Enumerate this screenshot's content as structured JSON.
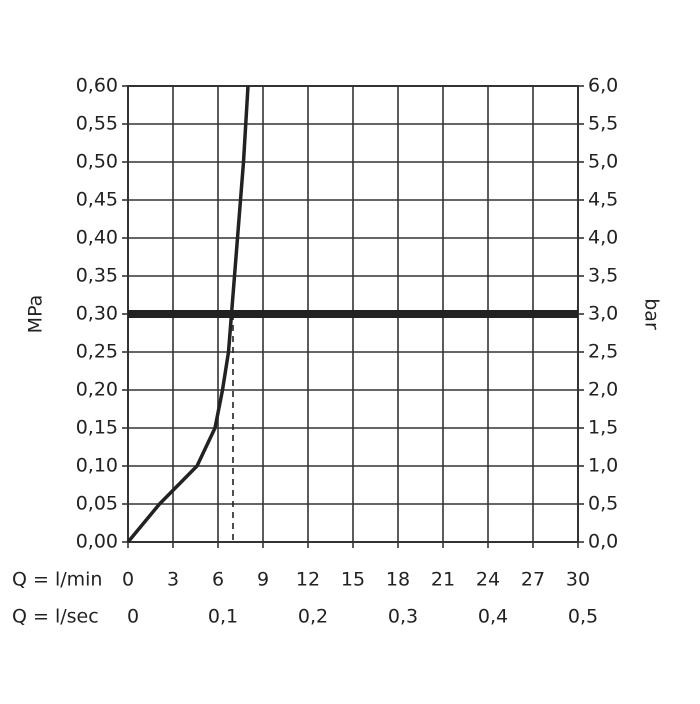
{
  "chart_data": {
    "type": "line",
    "xlabel": "Q = l/min",
    "x2label": "Q = l/sec",
    "ylabel": "MPa",
    "y2label": "bar",
    "xlim": [
      0,
      30
    ],
    "xticks": [
      0,
      3,
      6,
      9,
      12,
      15,
      18,
      21,
      24,
      27,
      30
    ],
    "x2lim": [
      0,
      0.5
    ],
    "x2ticks": [
      0,
      {
        "value": 0.1,
        "label": "0,1"
      },
      {
        "value": 0.2,
        "label": "0,2"
      },
      {
        "value": 0.3,
        "label": "0,3"
      },
      {
        "value": 0.4,
        "label": "0,4"
      },
      {
        "value": 0.5,
        "label": "0,5"
      }
    ],
    "ylim": [
      0,
      0.6
    ],
    "yticks": [
      {
        "value": 0,
        "label": "0,00"
      },
      {
        "value": 0.05,
        "label": "0,05"
      },
      {
        "value": 0.1,
        "label": "0,10"
      },
      {
        "value": 0.15,
        "label": "0,15"
      },
      {
        "value": 0.2,
        "label": "0,20"
      },
      {
        "value": 0.25,
        "label": "0,25"
      },
      {
        "value": 0.3,
        "label": "0,30"
      },
      {
        "value": 0.35,
        "label": "0,35"
      },
      {
        "value": 0.4,
        "label": "0,40"
      },
      {
        "value": 0.45,
        "label": "0,45"
      },
      {
        "value": 0.5,
        "label": "0,50"
      },
      {
        "value": 0.55,
        "label": "0,55"
      },
      {
        "value": 0.6,
        "label": "0,60"
      }
    ],
    "y2lim": [
      0,
      6
    ],
    "y2ticks": [
      {
        "value": 0,
        "label": "0,0"
      },
      {
        "value": 0.5,
        "label": "0,5"
      },
      {
        "value": 1,
        "label": "1,0"
      },
      {
        "value": 1.5,
        "label": "1,5"
      },
      {
        "value": 2,
        "label": "2,0"
      },
      {
        "value": 2.5,
        "label": "2,5"
      },
      {
        "value": 3,
        "label": "3,0"
      },
      {
        "value": 3.5,
        "label": "3,5"
      },
      {
        "value": 4,
        "label": "4,0"
      },
      {
        "value": 4.5,
        "label": "4,5"
      },
      {
        "value": 5,
        "label": "5,0"
      },
      {
        "value": 5.5,
        "label": "5,5"
      },
      {
        "value": 6,
        "label": "6,0"
      }
    ],
    "grid": true,
    "series": [
      {
        "color": "#222222",
        "x": [
          0,
          2.1,
          4.6,
          5.8,
          6.3,
          6.7,
          6.9,
          7.3,
          7.7,
          8.0
        ],
        "values": [
          0,
          0.05,
          0.1,
          0.15,
          0.2,
          0.25,
          0.3,
          0.4,
          0.5,
          0.6
        ]
      }
    ],
    "reference_line": {
      "value": 0.3,
      "color": "#222222"
    },
    "operating_point": {
      "x": 7.0,
      "y": 0.3
    }
  }
}
